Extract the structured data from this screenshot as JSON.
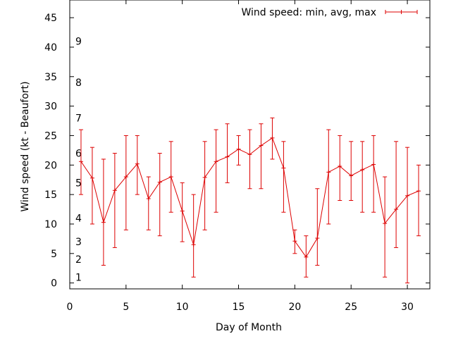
{
  "chart_data": {
    "type": "line",
    "title": "",
    "xlabel": "Day of Month",
    "ylabel": "Wind speed (kt - Beaufort)",
    "xlim": [
      0,
      32
    ],
    "ylim": [
      -1,
      48
    ],
    "x_ticks": [
      0,
      5,
      10,
      15,
      20,
      25,
      30
    ],
    "y_ticks": [
      0,
      5,
      10,
      15,
      20,
      25,
      30,
      35,
      40,
      45
    ],
    "beaufort_labels": [
      {
        "label": "1",
        "kt": 1
      },
      {
        "label": "2",
        "kt": 4
      },
      {
        "label": "3",
        "kt": 7
      },
      {
        "label": "4",
        "kt": 11
      },
      {
        "label": "5",
        "kt": 17
      },
      {
        "label": "6",
        "kt": 22
      },
      {
        "label": "7",
        "kt": 28
      },
      {
        "label": "8",
        "kt": 34
      },
      {
        "label": "9",
        "kt": 41
      }
    ],
    "grid": false,
    "legend_position": "top-right",
    "series": [
      {
        "name": "Wind speed: min, avg, max",
        "color": "#dd0000",
        "x": [
          1,
          2,
          3,
          4,
          5,
          6,
          7,
          8,
          9,
          10,
          11,
          12,
          13,
          14,
          15,
          16,
          17,
          18,
          19,
          20,
          21,
          22,
          23,
          24,
          25,
          26,
          27,
          28,
          29,
          30,
          31
        ],
        "avg": [
          20.6,
          17.8,
          10.3,
          15.7,
          18.0,
          20.2,
          14.3,
          17.1,
          18.0,
          12.2,
          6.5,
          17.9,
          20.6,
          21.4,
          22.7,
          21.8,
          23.3,
          24.6,
          19.5,
          7.1,
          4.4,
          7.6,
          18.8,
          19.8,
          18.2,
          19.2,
          20.1,
          10.1,
          12.5,
          14.8,
          15.6
        ],
        "min": [
          15,
          10,
          3,
          6,
          9,
          15,
          9,
          8,
          12,
          7,
          1,
          9,
          12,
          17,
          20,
          16,
          16,
          21,
          12,
          5,
          1,
          3,
          10,
          14,
          14,
          12,
          12,
          1,
          6,
          0,
          8
        ],
        "max": [
          26,
          23,
          21,
          22,
          25,
          25,
          18,
          22,
          24,
          17,
          15,
          24,
          26,
          27,
          25,
          26,
          27,
          28,
          24,
          9,
          8,
          16,
          26,
          25,
          24,
          24,
          25,
          18,
          24,
          23,
          20
        ]
      }
    ]
  }
}
